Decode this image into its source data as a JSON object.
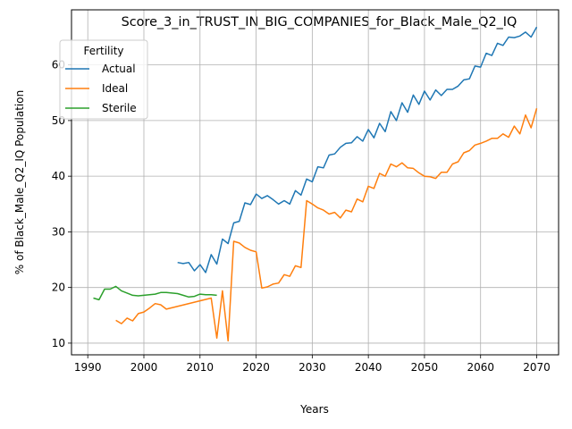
{
  "chart_data": {
    "type": "line",
    "title": "Score_3_in_TRUST_IN_BIG_COMPANIES_for_Black_Male_Q2_IQ",
    "xlabel": "Years",
    "ylabel": "% of Black_Male_Q2_IQ Population",
    "xlim": [
      1987.1,
      2073.9
    ],
    "ylim": [
      7.9,
      69.9
    ],
    "xticks": [
      1990,
      2000,
      2010,
      2020,
      2030,
      2040,
      2050,
      2060,
      2070
    ],
    "yticks": [
      10,
      20,
      30,
      40,
      50,
      60
    ],
    "grid": true,
    "legend": {
      "title": "Fertility",
      "placement": "upper-left"
    },
    "series": [
      {
        "name": "Actual",
        "color": "#1f77b4",
        "x": [
          2006,
          2007,
          2008,
          2009,
          2010,
          2011,
          2012,
          2013,
          2014,
          2015,
          2016,
          2017,
          2018,
          2019,
          2020,
          2021,
          2022,
          2023,
          2024,
          2025,
          2026,
          2027,
          2028,
          2029,
          2030,
          2031,
          2032,
          2033,
          2034,
          2035,
          2036,
          2037,
          2038,
          2039,
          2040,
          2041,
          2042,
          2043,
          2044,
          2045,
          2046,
          2047,
          2048,
          2049,
          2050,
          2051,
          2052,
          2053,
          2054,
          2055,
          2056,
          2057,
          2058,
          2059,
          2060,
          2061,
          2062,
          2063,
          2064,
          2065,
          2066,
          2067,
          2068,
          2069,
          2070
        ],
        "y": [
          24.5,
          24.3,
          24.5,
          23.0,
          24.1,
          22.7,
          25.9,
          24.2,
          28.7,
          27.9,
          31.6,
          31.9,
          35.2,
          34.9,
          36.8,
          36.0,
          36.5,
          35.8,
          35.0,
          35.6,
          35.0,
          37.4,
          36.6,
          39.5,
          39.0,
          41.7,
          41.5,
          43.8,
          44.0,
          45.2,
          45.9,
          46.0,
          47.1,
          46.3,
          48.4,
          46.9,
          49.5,
          48.0,
          51.6,
          50.0,
          53.2,
          51.5,
          54.6,
          52.9,
          55.3,
          53.7,
          55.5,
          54.5,
          55.6,
          55.6,
          56.2,
          57.3,
          57.5,
          59.8,
          59.6,
          62.1,
          61.7,
          63.9,
          63.5,
          65.0,
          64.9,
          65.2,
          65.9,
          65.0,
          66.8
        ]
      },
      {
        "name": "Ideal",
        "color": "#ff7f0e",
        "x": [
          1995,
          1996,
          1997,
          1998,
          1999,
          2000,
          2001,
          2002,
          2003,
          2004,
          2012,
          2013,
          2014,
          2015,
          2016,
          2017,
          2018,
          2019,
          2020,
          2021,
          2022,
          2023,
          2024,
          2025,
          2026,
          2027,
          2028,
          2029,
          2030,
          2031,
          2032,
          2033,
          2034,
          2035,
          2036,
          2037,
          2038,
          2039,
          2040,
          2041,
          2042,
          2043,
          2044,
          2045,
          2046,
          2047,
          2048,
          2049,
          2050,
          2051,
          2052,
          2053,
          2054,
          2055,
          2056,
          2057,
          2058,
          2059,
          2060,
          2061,
          2062,
          2063,
          2064,
          2065,
          2066,
          2067,
          2068,
          2069,
          2070
        ],
        "y": [
          14.1,
          13.5,
          14.5,
          14.0,
          15.3,
          15.6,
          16.3,
          17.1,
          16.9,
          16.1,
          18.1,
          10.9,
          19.4,
          10.4,
          28.3,
          28.0,
          27.2,
          26.7,
          26.4,
          19.9,
          20.1,
          20.6,
          20.8,
          22.3,
          22.0,
          23.9,
          23.6,
          35.6,
          35.0,
          34.3,
          33.9,
          33.2,
          33.5,
          32.5,
          33.9,
          33.6,
          35.9,
          35.4,
          38.2,
          37.8,
          40.5,
          40.0,
          42.2,
          41.7,
          42.4,
          41.5,
          41.4,
          40.6,
          40.0,
          39.9,
          39.6,
          40.7,
          40.7,
          42.2,
          42.6,
          44.2,
          44.6,
          45.6,
          45.9,
          46.3,
          46.8,
          46.8,
          47.6,
          47.0,
          49.0,
          47.6,
          51.0,
          48.7,
          52.2
        ]
      },
      {
        "name": "Sterile",
        "color": "#2ca02c",
        "x": [
          1991,
          1992,
          1993,
          1994,
          1995,
          1996,
          1997,
          1998,
          1999,
          2000,
          2001,
          2002,
          2003,
          2004,
          2005,
          2006,
          2007,
          2008,
          2009,
          2010,
          2011,
          2012,
          2013
        ],
        "y": [
          18.1,
          17.8,
          19.7,
          19.7,
          20.2,
          19.4,
          19.0,
          18.6,
          18.5,
          18.6,
          18.7,
          18.8,
          19.1,
          19.1,
          19.0,
          18.9,
          18.6,
          18.3,
          18.4,
          18.8,
          18.7,
          18.7,
          18.6
        ]
      }
    ]
  }
}
